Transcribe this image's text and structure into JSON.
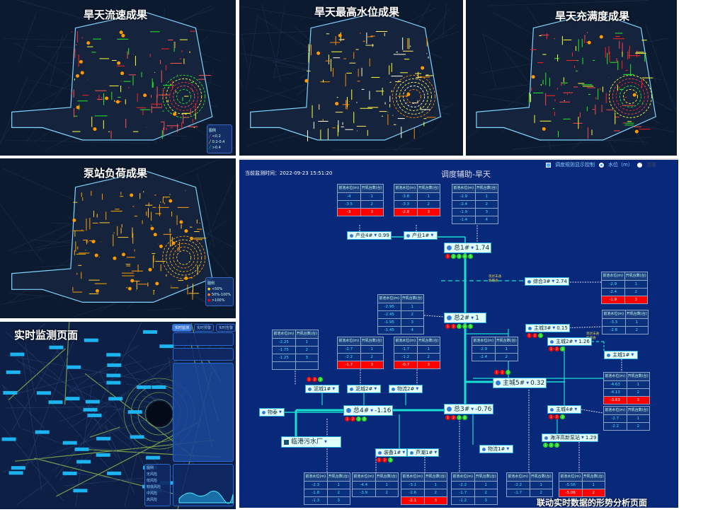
{
  "panels": {
    "flow": {
      "title": "旱天流速成果",
      "legend": {
        "title": "图例",
        "items": [
          "<0.2",
          "0.2-0.4",
          ">0.4"
        ]
      }
    },
    "level": {
      "title": "旱天最高水位成果"
    },
    "fill": {
      "title": "旱天充满度成果"
    },
    "pump": {
      "title": "泵站负荷成果",
      "legend": {
        "title": "图例",
        "items": [
          "<50%",
          "50%-100%",
          ">100%"
        ]
      }
    },
    "monitor": {
      "title": "实时监测页面",
      "legend_title": "图例"
    }
  },
  "schematic": {
    "time_label": "当前监测时间：2022-09-23 15:51:20",
    "title": "调度辅助-旱天",
    "rule_toggle": "调度规则显示控制",
    "radio_level": "水位（m）",
    "radio_flow": "流量",
    "annotation": [
      "现状未通",
      "新增通"
    ],
    "caption": "联动实时数据的形势分析页面",
    "table_header": [
      "前池水位(m)",
      "开机台数(台)"
    ],
    "colors": {
      "background": "#08287a",
      "pipe": "#19e0d0",
      "alarm": "#ff0000",
      "ok": "#22dd22"
    },
    "tables": [
      {
        "id": "cy4",
        "rows": [
          [
            "-4",
            "1"
          ],
          [
            "-3.5",
            "2"
          ],
          [
            "-3",
            "3"
          ]
        ],
        "alarm_row": 2
      },
      {
        "id": "cy1",
        "rows": [
          [
            "-3.8",
            "1"
          ],
          [
            "-3.3",
            "2"
          ],
          [
            "-2.8",
            "3"
          ]
        ],
        "alarm_row": 2
      },
      {
        "id": "z1",
        "rows": [
          [
            "-2.9",
            "1"
          ],
          [
            "-2.4",
            "2"
          ],
          [
            "-1.9",
            "3"
          ],
          [
            "-1.4",
            "4"
          ]
        ]
      },
      {
        "id": "zh3",
        "rows": [
          [
            "-2.9",
            "1"
          ],
          [
            "-2.4",
            "2"
          ],
          [
            "-1.9",
            "3"
          ]
        ],
        "alarm_row": 2
      },
      {
        "id": "z2",
        "rows": [
          [
            "-2.95",
            "1"
          ],
          [
            "-2.45",
            "2"
          ],
          [
            "-1.95",
            "3"
          ],
          [
            "-1.45",
            "4"
          ]
        ]
      },
      {
        "id": "zc3",
        "rows": [
          [
            "-3.3",
            "1"
          ],
          [
            "-2.8",
            "2"
          ]
        ]
      },
      {
        "id": "nc1",
        "rows": [
          [
            "-2.25",
            "1"
          ],
          [
            "-1.75",
            "2"
          ],
          [
            "-1.25",
            "3"
          ],
          [
            "",
            ""
          ]
        ]
      },
      {
        "id": "nc2",
        "rows": [
          [
            "-2.7",
            "1"
          ],
          [
            "-2.2",
            "2"
          ],
          [
            "-1.7",
            "3"
          ]
        ],
        "alarm_row": 2
      },
      {
        "id": "wl2",
        "rows": [
          [
            "-1.7",
            "1"
          ],
          [
            "-1.2",
            "2"
          ],
          [
            "-0.7",
            "3"
          ]
        ],
        "alarm_row": 2
      },
      {
        "id": "zc2",
        "rows": [
          [
            "-2.9",
            "1"
          ],
          [
            "-2.4",
            "2"
          ]
        ]
      },
      {
        "id": "zc1",
        "rows": [
          [
            "-4.63",
            "1"
          ],
          [
            "-4.13",
            "2"
          ],
          [
            "-3.63",
            "3"
          ]
        ],
        "alarm_row": 2
      },
      {
        "id": "zc4",
        "rows": [
          [
            "-2.7",
            "1"
          ],
          [
            "-2.2",
            "2"
          ]
        ]
      },
      {
        "id": "b1",
        "rows": [
          [
            "-2.3",
            "1"
          ],
          [
            "-1.8",
            "2"
          ],
          [
            "-1.3",
            "3"
          ]
        ]
      },
      {
        "id": "b2",
        "rows": [
          [
            "-4.4",
            "1"
          ],
          [
            "-3.9",
            "2"
          ]
        ]
      },
      {
        "id": "b3",
        "rows": [
          [
            "-3.1",
            "1"
          ],
          [
            "-2.6",
            "2"
          ],
          [
            "-2.1",
            "3"
          ]
        ],
        "alarm_row": 2
      },
      {
        "id": "b4",
        "rows": [
          [
            "-2.2",
            "1"
          ],
          [
            "-1.7",
            "2"
          ],
          [
            "-1.2",
            "3"
          ]
        ]
      },
      {
        "id": "b5",
        "rows": [
          [
            "-2.2",
            "1"
          ],
          [
            "-1.7",
            "2"
          ]
        ]
      },
      {
        "id": "b6",
        "rows": [
          [
            "-5.56",
            "1"
          ],
          [
            "-5.06",
            "2"
          ]
        ],
        "alarm_row": 1
      }
    ],
    "stations": [
      {
        "id": "cy4",
        "name": "产业4#",
        "value": "0.99"
      },
      {
        "id": "cy1",
        "name": "产业1#",
        "value": ""
      },
      {
        "id": "z1",
        "name": "总1#",
        "value": "1.74",
        "major": true,
        "lights": [
          "1",
          "2",
          "3",
          "4",
          "5"
        ],
        "on": 1
      },
      {
        "id": "zh3",
        "name": "综合3#",
        "value": "2.74"
      },
      {
        "id": "z2",
        "name": "总2#",
        "value": "1",
        "major": true,
        "lights": [
          "1",
          "2",
          "3",
          "4",
          "5"
        ],
        "on": 2
      },
      {
        "id": "zc3",
        "name": "主城3#",
        "value": "0.15",
        "lights": [
          "1",
          "2",
          "3"
        ],
        "on": 2
      },
      {
        "id": "zc2",
        "name": "主城2#",
        "value": "1.26",
        "lights": [
          "1",
          "2",
          "3"
        ],
        "on": 2
      },
      {
        "id": "zc1",
        "name": "主城1#",
        "value": ""
      },
      {
        "id": "zc5",
        "name": "主城5#",
        "value": "0.32",
        "major": true,
        "lights": [
          "1",
          "2",
          "3"
        ],
        "on": 2
      },
      {
        "id": "nc1",
        "name": "泥城1#",
        "value": "",
        "lights": [
          "1",
          "2",
          "3"
        ],
        "on": 2
      },
      {
        "id": "nc2",
        "name": "泥城2#",
        "value": ""
      },
      {
        "id": "wl2",
        "name": "物流2#",
        "value": ""
      },
      {
        "id": "wt",
        "name": "物泰",
        "value": ""
      },
      {
        "id": "z4",
        "name": "总4#",
        "value": "-1.16",
        "major": true,
        "lights": [
          "1",
          "2",
          "3",
          "4"
        ],
        "on": 2
      },
      {
        "id": "z3",
        "name": "总3#",
        "value": "-0.76",
        "major": true,
        "lights": [
          "1",
          "2",
          "3",
          "4"
        ],
        "on": 2
      },
      {
        "id": "zc4",
        "name": "主城4#",
        "value": "",
        "lights": [
          "1",
          "2",
          "3"
        ],
        "on": 2
      },
      {
        "id": "lg",
        "name": "临港污水厂",
        "value": "",
        "plant": true
      },
      {
        "id": "hy",
        "name": "海洋高新泵站",
        "value": "1.29",
        "lights": [
          "1",
          "2",
          "3"
        ],
        "on": 0
      },
      {
        "id": "wl1",
        "name": "物流1#",
        "value": ""
      },
      {
        "id": "zb1",
        "name": "装备1#",
        "value": "",
        "lights": [
          "1",
          "2",
          "3"
        ],
        "on": 2
      },
      {
        "id": "lc1",
        "name": "芦潮1#",
        "value": ""
      }
    ]
  },
  "monitor": {
    "tabs": [
      "实时监测",
      "实时预警",
      "实时告警"
    ],
    "legend_items": [
      "无风险",
      "低风险",
      "较低风险",
      "中风险",
      "高风险"
    ]
  }
}
